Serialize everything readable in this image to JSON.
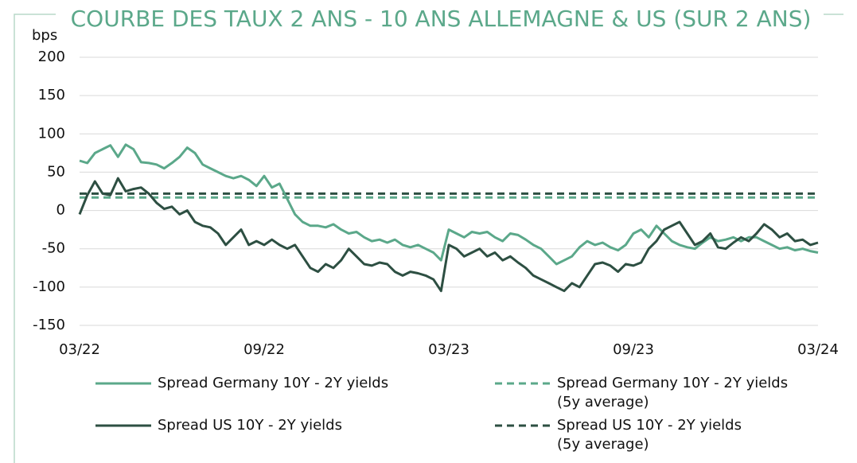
{
  "chart_data": {
    "type": "line",
    "title": "COURBE DES TAUX 2 ANS - 10 ANS ALLEMAGNE & US (SUR 2 ANS)",
    "y_label": "bps",
    "categories": [
      "03/22",
      null,
      null,
      null,
      null,
      null,
      null,
      null,
      null,
      null,
      null,
      null,
      null,
      null,
      null,
      null,
      null,
      null,
      null,
      null,
      null,
      null,
      null,
      null,
      "09/22",
      null,
      null,
      null,
      null,
      null,
      null,
      null,
      null,
      null,
      null,
      null,
      null,
      null,
      null,
      null,
      null,
      null,
      null,
      null,
      null,
      null,
      null,
      null,
      "03/23",
      null,
      null,
      null,
      null,
      null,
      null,
      null,
      null,
      null,
      null,
      null,
      null,
      null,
      null,
      null,
      null,
      null,
      null,
      null,
      null,
      null,
      null,
      null,
      "09/23",
      null,
      null,
      null,
      null,
      null,
      null,
      null,
      null,
      null,
      null,
      null,
      null,
      null,
      null,
      null,
      null,
      null,
      null,
      null,
      null,
      null,
      null,
      null,
      "03/24"
    ],
    "series": [
      {
        "name": "Spread Germany 10Y -  2Y yields",
        "color": "#5ba88a",
        "values": [
          65,
          62,
          75,
          80,
          85,
          70,
          86,
          80,
          63,
          62,
          60,
          55,
          62,
          70,
          82,
          75,
          60,
          55,
          50,
          45,
          42,
          45,
          40,
          32,
          45,
          30,
          35,
          15,
          -5,
          -15,
          -20,
          -20,
          -22,
          -18,
          -25,
          -30,
          -28,
          -35,
          -40,
          -38,
          -42,
          -38,
          -45,
          -48,
          -45,
          -50,
          -55,
          -65,
          -25,
          -30,
          -35,
          -28,
          -30,
          -28,
          -35,
          -40,
          -30,
          -32,
          -38,
          -45,
          -50,
          -60,
          -70,
          -65,
          -60,
          -48,
          -40,
          -45,
          -42,
          -48,
          -52,
          -45,
          -30,
          -25,
          -35,
          -20,
          -30,
          -40,
          -45,
          -48,
          -50,
          -42,
          -35,
          -40,
          -38,
          -35,
          -40,
          -35,
          -35,
          -40,
          -45,
          -50,
          -48,
          -52,
          -50,
          -53,
          -55
        ]
      },
      {
        "name": "Spread US 10Y -  2Y yields",
        "color": "#2d4f42",
        "values": [
          -5,
          20,
          38,
          22,
          20,
          42,
          25,
          28,
          30,
          22,
          10,
          2,
          5,
          -5,
          0,
          -15,
          -20,
          -22,
          -30,
          -45,
          -35,
          -25,
          -45,
          -40,
          -45,
          -38,
          -45,
          -50,
          -45,
          -60,
          -75,
          -80,
          -70,
          -75,
          -65,
          -50,
          -60,
          -70,
          -72,
          -68,
          -70,
          -80,
          -85,
          -80,
          -82,
          -85,
          -90,
          -105,
          -45,
          -50,
          -60,
          -55,
          -50,
          -60,
          -55,
          -65,
          -60,
          -68,
          -75,
          -85,
          -90,
          -95,
          -100,
          -105,
          -95,
          -100,
          -85,
          -70,
          -68,
          -72,
          -80,
          -70,
          -72,
          -68,
          -50,
          -40,
          -25,
          -20,
          -15,
          -30,
          -45,
          -40,
          -30,
          -48,
          -50,
          -42,
          -35,
          -40,
          -30,
          -18,
          -25,
          -35,
          -30,
          -40,
          -38,
          -45,
          -42
        ]
      }
    ],
    "reference_lines": [
      {
        "name": "Spread Germany 10Y -  2Y yields\n(5y average)",
        "value": 17,
        "color": "#5ba88a",
        "dashed": true
      },
      {
        "name": "Spread US 10Y -  2Y yields\n(5y average)",
        "value": 22,
        "color": "#2d4f42",
        "dashed": true
      }
    ],
    "ylim": [
      -150,
      200
    ],
    "yticks": [
      -150,
      -100,
      -50,
      0,
      50,
      100,
      150,
      200
    ],
    "grid": true
  }
}
